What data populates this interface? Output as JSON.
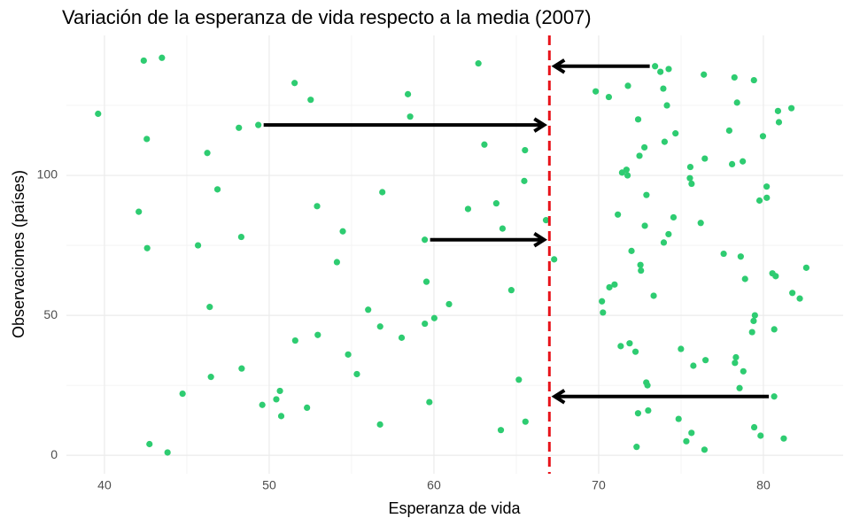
{
  "chart_data": {
    "type": "scatter",
    "title": "Variación de la esperanza de vida respecto a la media (2007)",
    "x_label": "Esperanza de vida",
    "y_label": "Observaciones (países)",
    "x": [
      43.828,
      76.423,
      72.301,
      42.731,
      75.32,
      81.235,
      79.829,
      75.635,
      64.062,
      79.441,
      56.728,
      65.554,
      74.852,
      50.728,
      72.39,
      73.005,
      52.295,
      49.58,
      59.723,
      50.43,
      80.653,
      44.741,
      50.651,
      78.553,
      72.961,
      72.889,
      65.152,
      46.462,
      55.322,
      78.782,
      48.328,
      75.748,
      78.273,
      76.486,
      78.332,
      54.791,
      72.235,
      74.994,
      71.338,
      71.878,
      51.579,
      58.04,
      52.947,
      79.313,
      80.657,
      56.735,
      59.448,
      79.406,
      60.022,
      79.483,
      70.259,
      56.007,
      46.388,
      60.916,
      70.198,
      82.208,
      73.338,
      81.757,
      64.698,
      70.65,
      70.964,
      59.545,
      78.885,
      80.745,
      80.546,
      72.567,
      82.603,
      72.535,
      54.11,
      67.297,
      78.623,
      77.588,
      71.993,
      42.592,
      45.678,
      73.952,
      59.443,
      48.303,
      74.241,
      54.467,
      64.164,
      72.801,
      76.195,
      66.803,
      74.543,
      71.164,
      42.082,
      62.069,
      52.906,
      63.785,
      79.762,
      80.204,
      72.899,
      56.867,
      46.859,
      80.196,
      75.64,
      65.483,
      75.537,
      71.752,
      71.421,
      71.688,
      75.563,
      78.098,
      78.746,
      76.442,
      72.476,
      46.242,
      65.528,
      72.777,
      63.062,
      74.002,
      42.568,
      79.972,
      74.663,
      77.926,
      48.159,
      49.339,
      80.941,
      72.396,
      58.556,
      39.613,
      80.884,
      81.701,
      74.143,
      78.4,
      52.517,
      70.616,
      58.42,
      69.819,
      73.923,
      71.777,
      51.542,
      79.425,
      78.242,
      76.384,
      73.747,
      74.249,
      73.422,
      62.698,
      42.384,
      43.487
    ],
    "y": [
      1,
      2,
      3,
      4,
      5,
      6,
      7,
      8,
      9,
      10,
      11,
      12,
      13,
      14,
      15,
      16,
      17,
      18,
      19,
      20,
      21,
      22,
      23,
      24,
      25,
      26,
      27,
      28,
      29,
      30,
      31,
      32,
      33,
      34,
      35,
      36,
      37,
      38,
      39,
      40,
      41,
      42,
      43,
      44,
      45,
      46,
      47,
      48,
      49,
      50,
      51,
      52,
      53,
      54,
      55,
      56,
      57,
      58,
      59,
      60,
      61,
      62,
      63,
      64,
      65,
      66,
      67,
      68,
      69,
      70,
      71,
      72,
      73,
      74,
      75,
      76,
      77,
      78,
      79,
      80,
      81,
      82,
      83,
      84,
      85,
      86,
      87,
      88,
      89,
      90,
      91,
      92,
      93,
      94,
      95,
      96,
      97,
      98,
      99,
      100,
      101,
      102,
      103,
      104,
      105,
      106,
      107,
      108,
      109,
      110,
      111,
      112,
      113,
      114,
      115,
      116,
      117,
      118,
      119,
      120,
      121,
      122,
      123,
      124,
      125,
      126,
      127,
      128,
      129,
      130,
      131,
      132,
      133,
      134,
      135,
      136,
      137,
      138,
      139,
      140,
      141,
      142
    ],
    "color": "#2ecc71",
    "mean_line": {
      "value": 67.00742,
      "color": "#e8141b"
    },
    "arrows": [
      {
        "x": 73.422,
        "y": 139,
        "xend": 67.00742
      },
      {
        "x": 49.339,
        "y": 118,
        "xend": 67.00742
      },
      {
        "x": 59.443,
        "y": 77,
        "xend": 67.00742
      },
      {
        "x": 80.653,
        "y": 21,
        "xend": 67.00742
      }
    ],
    "xlim": [
      37.69,
      84.84
    ],
    "ylim": [
      -6.6,
      150
    ],
    "xticks": [
      40,
      50,
      60,
      70,
      80
    ],
    "yticks": [
      0,
      50,
      100
    ],
    "grid": true
  }
}
